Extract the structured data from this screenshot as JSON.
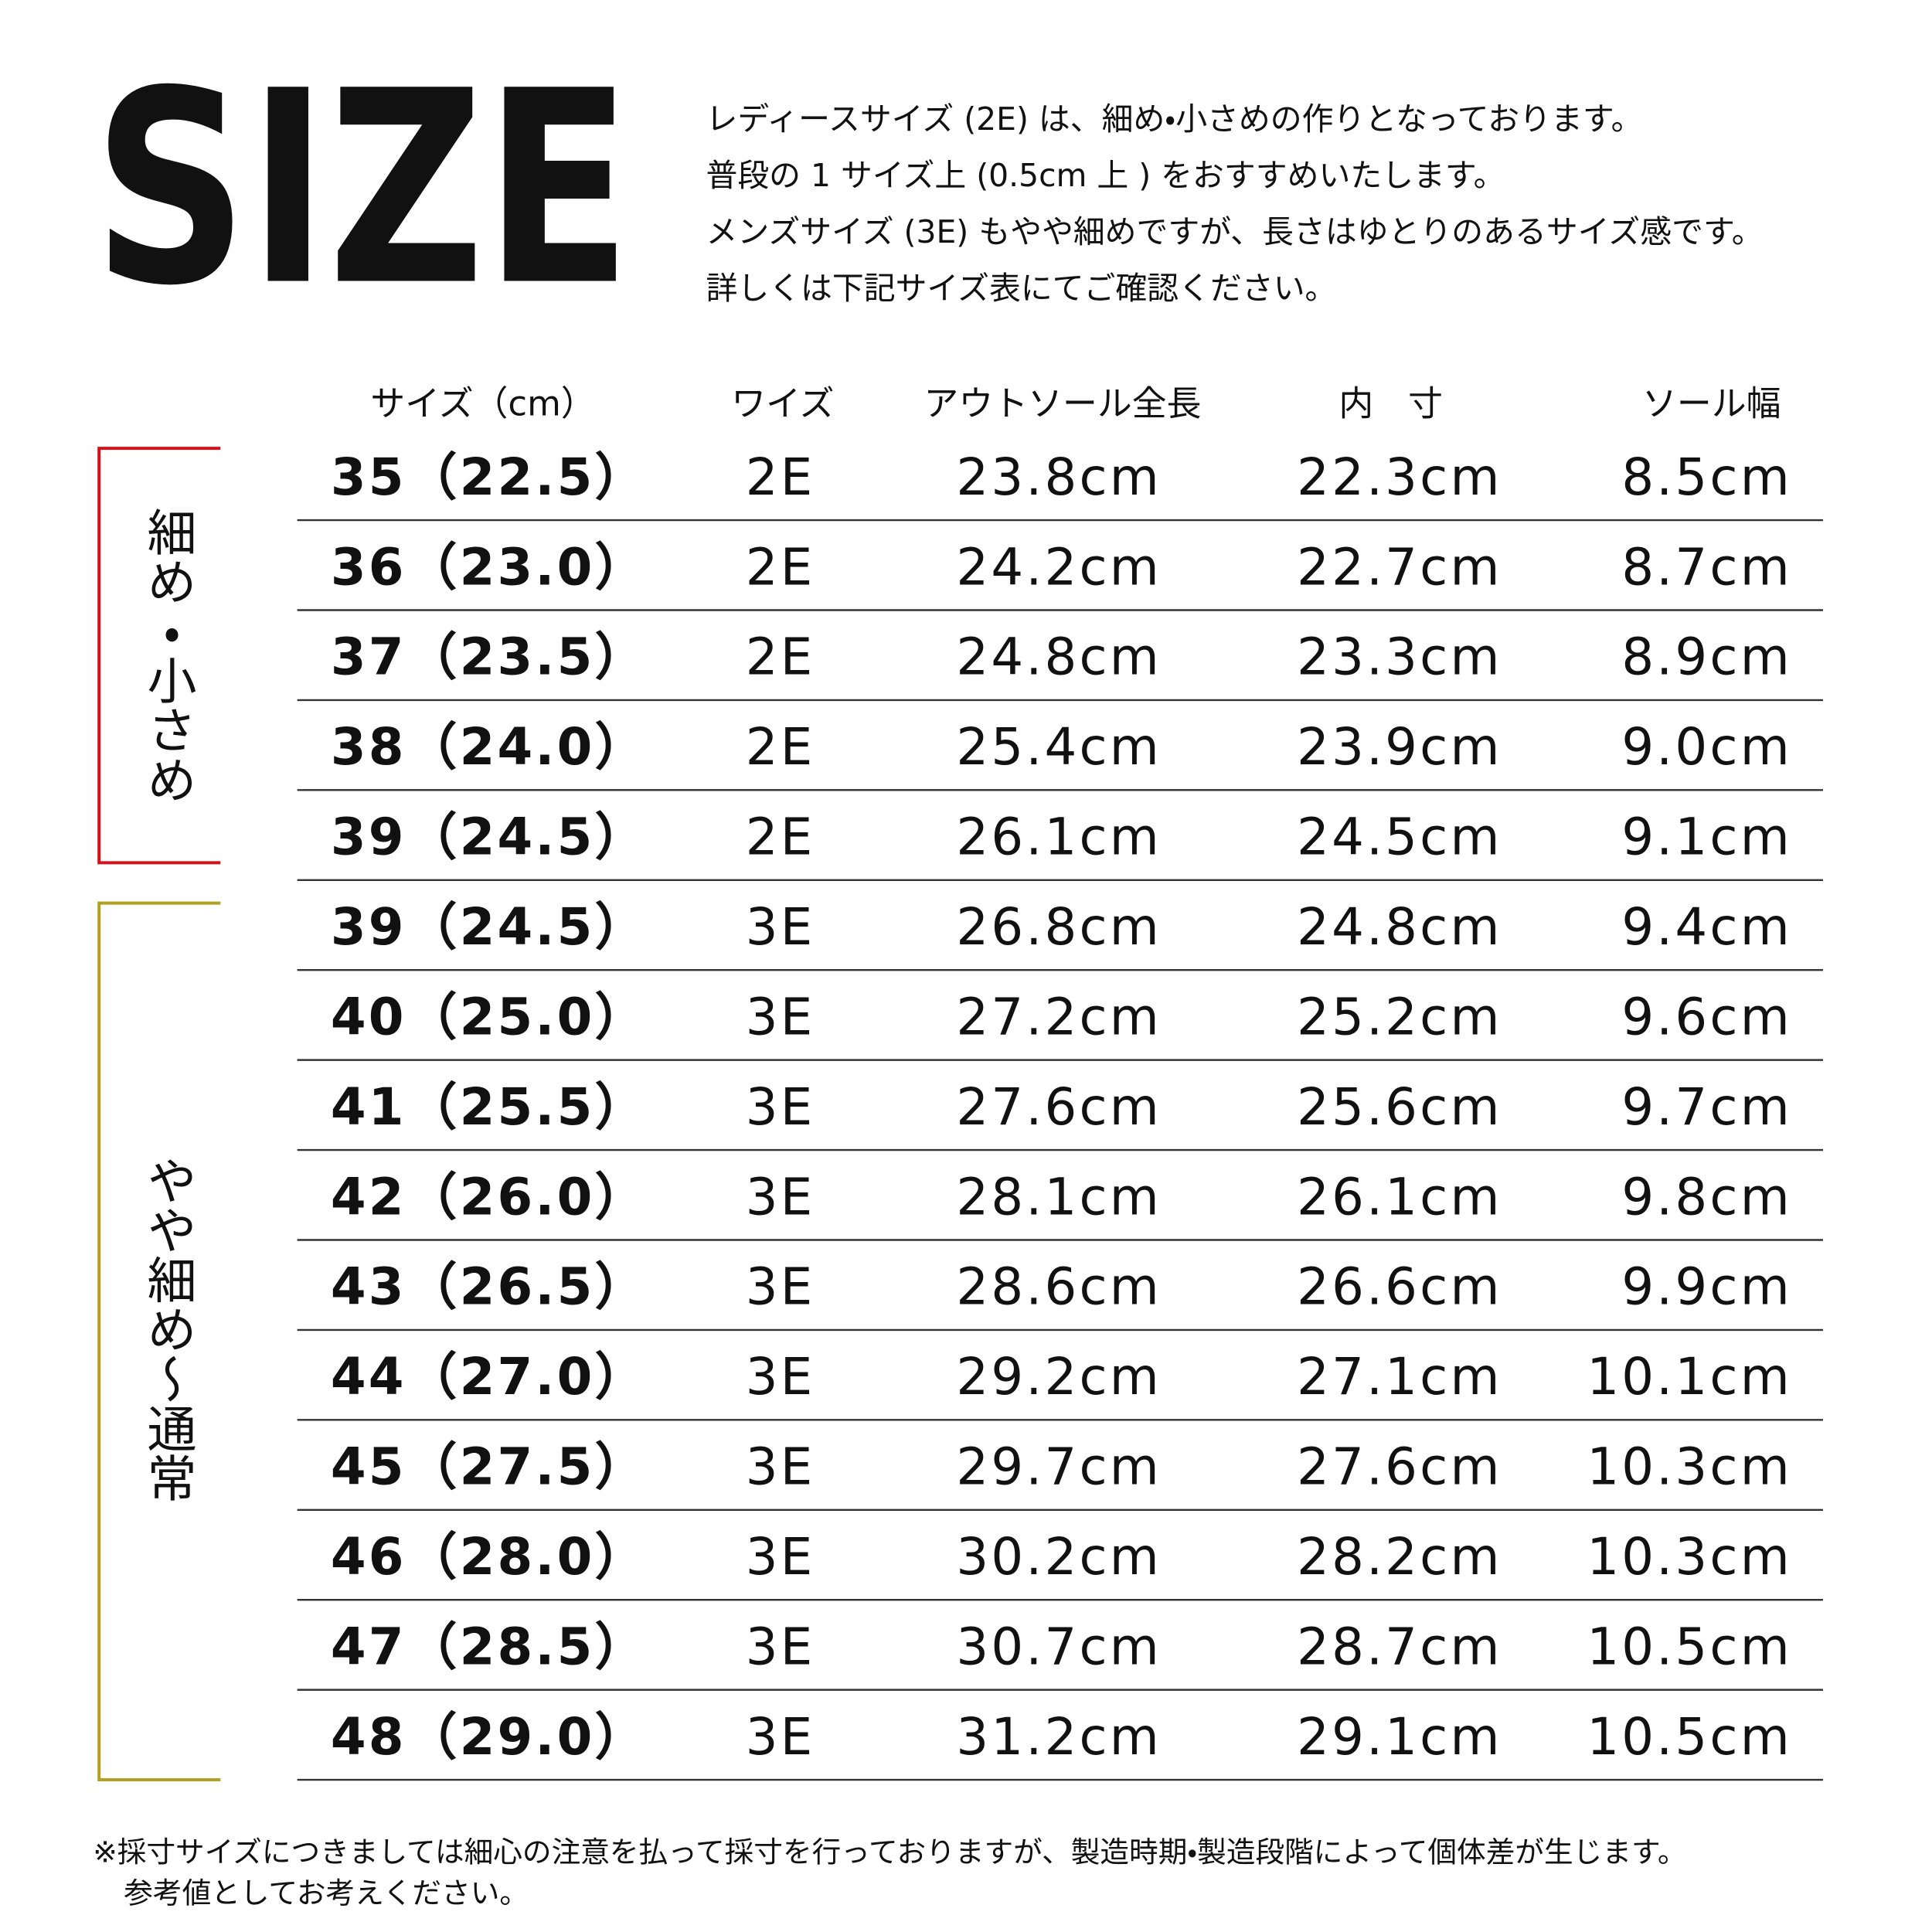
{
  "header": {
    "title": "SIZE",
    "notes": [
      "レディースサイズ (2E) は、細め・小さめの作りとなっております。",
      "普段の 1 サイズ上 (0.5cm 上 ) をおすすめいたします。",
      "メンズサイズ (3E) もやや細めですが、長さはゆとりのあるサイズ感です。",
      "詳しくは下記サイズ表にてご確認ください。"
    ]
  },
  "table": {
    "columns": [
      "サイズ（cm）",
      "ワイズ",
      "アウトソール全長",
      "内　寸",
      "ソール幅"
    ],
    "groups": [
      {
        "label": "細め・小さめ",
        "color": "#d0121b",
        "width_color": "#d0121b",
        "rows": [
          [
            "35（22.5）",
            "2E",
            "23.8cm",
            "22.3cm",
            "8.5cm"
          ],
          [
            "36（23.0）",
            "2E",
            "24.2cm",
            "22.7cm",
            "8.7cm"
          ],
          [
            "37（23.5）",
            "2E",
            "24.8cm",
            "23.3cm",
            "8.9cm"
          ],
          [
            "38（24.0）",
            "2E",
            "25.4cm",
            "23.9cm",
            "9.0cm"
          ],
          [
            "39（24.5）",
            "2E",
            "26.1cm",
            "24.5cm",
            "9.1cm"
          ]
        ]
      },
      {
        "label": "やや細め〜通常",
        "color": "#b3a020",
        "width_color": "#2b2a85",
        "rows": [
          [
            "39（24.5）",
            "3E",
            "26.8cm",
            "24.8cm",
            "9.4cm"
          ],
          [
            "40（25.0）",
            "3E",
            "27.2cm",
            "25.2cm",
            "9.6cm"
          ],
          [
            "41（25.5）",
            "3E",
            "27.6cm",
            "25.6cm",
            "9.7cm"
          ],
          [
            "42（26.0）",
            "3E",
            "28.1cm",
            "26.1cm",
            "9.8cm"
          ],
          [
            "43（26.5）",
            "3E",
            "28.6cm",
            "26.6cm",
            "9.9cm"
          ],
          [
            "44（27.0）",
            "3E",
            "29.2cm",
            "27.1cm",
            "10.1cm"
          ],
          [
            "45（27.5）",
            "3E",
            "29.7cm",
            "27.6cm",
            "10.3cm"
          ],
          [
            "46（28.0）",
            "3E",
            "30.2cm",
            "28.2cm",
            "10.3cm"
          ],
          [
            "47（28.5）",
            "3E",
            "30.7cm",
            "28.7cm",
            "10.5cm"
          ],
          [
            "48（29.0）",
            "3E",
            "31.2cm",
            "29.1cm",
            "10.5cm"
          ]
        ]
      }
    ]
  },
  "footnote": [
    "※採寸サイズにつきましては細心の注意を払って採寸を行っておりますが、製造時期・製造段階によって個体差が生じます。",
    "参考値としてお考えください。"
  ]
}
